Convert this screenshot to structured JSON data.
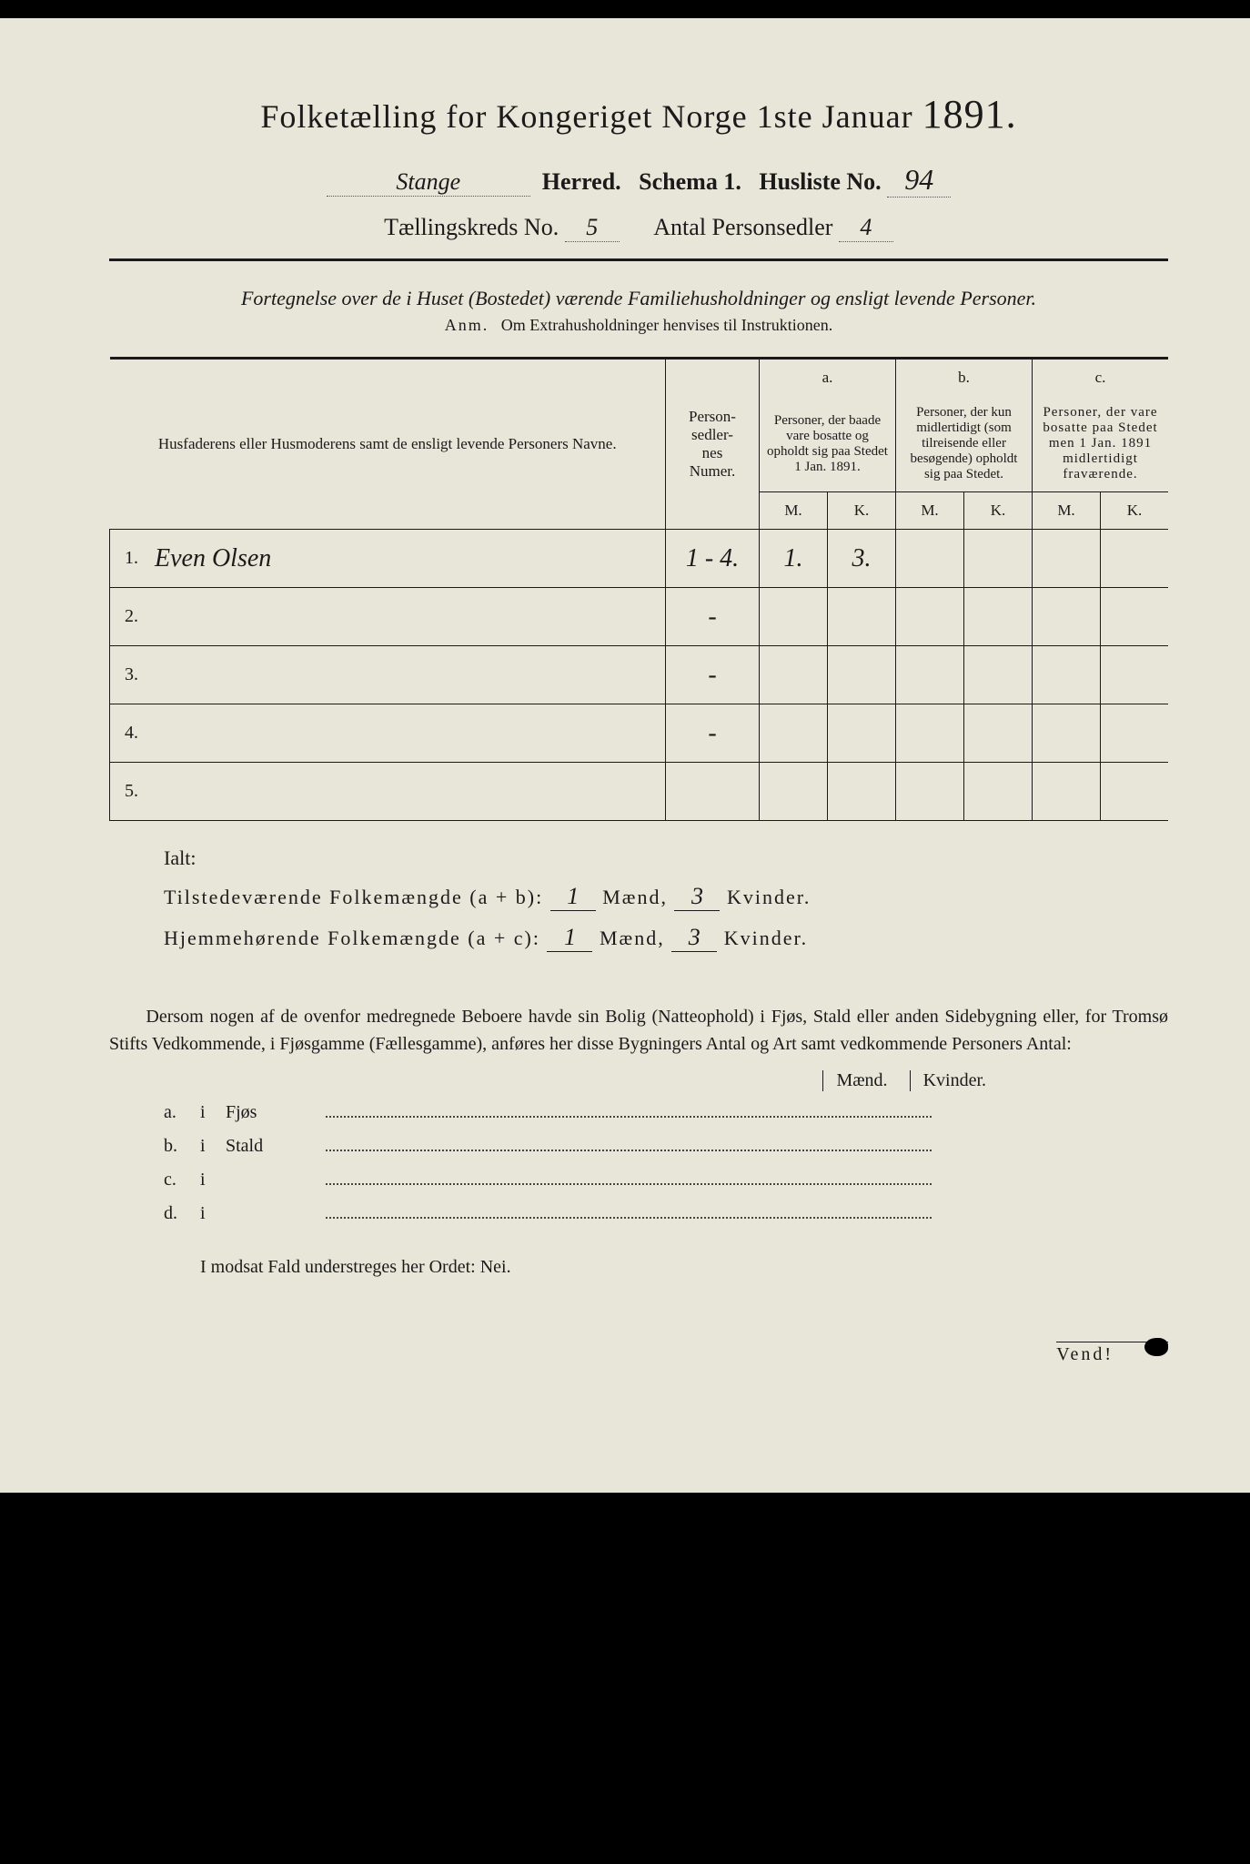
{
  "title": {
    "text_left": "Folketælling for Kongeriget Norge 1ste Januar",
    "year": "1891."
  },
  "header": {
    "herred_name": "Stange",
    "herred_label": "Herred.",
    "schema_label": "Schema 1.",
    "husliste_label": "Husliste No.",
    "husliste_no": "94",
    "kreds_label": "Tællingskreds No.",
    "kreds_no": "5",
    "personsedler_label": "Antal Personsedler",
    "personsedler_no": "4"
  },
  "subtitle": "Fortegnelse over de i Huset (Bostedet) værende Familiehusholdninger og ensligt levende Personer.",
  "anm_label": "Anm.",
  "anm_text": "Om Extrahusholdninger henvises til Instruktionen.",
  "table": {
    "col_name": "Husfaderens eller Husmoderens samt de ensligt levende Personers Navne.",
    "col_numer_l1": "Person-",
    "col_numer_l2": "sedler-",
    "col_numer_l3": "nes",
    "col_numer_l4": "Numer.",
    "a_label": "a.",
    "a_text": "Personer, der baade vare bosatte og opholdt sig paa Stedet 1 Jan. 1891.",
    "b_label": "b.",
    "b_text": "Personer, der kun midlertidigt (som tilreisende eller besøgende) opholdt sig paa Stedet.",
    "c_label": "c.",
    "c_text": "Personer, der vare bosatte paa Stedet men 1 Jan. 1891 midlertidigt fraværende.",
    "M": "M.",
    "K": "K.",
    "rows": [
      {
        "n": "1.",
        "name": "Even Olsen",
        "numer": "1 - 4.",
        "aM": "1.",
        "aK": "3.",
        "bM": "",
        "bK": "",
        "cM": "",
        "cK": ""
      },
      {
        "n": "2.",
        "name": "",
        "numer": "-",
        "aM": "",
        "aK": "",
        "bM": "",
        "bK": "",
        "cM": "",
        "cK": ""
      },
      {
        "n": "3.",
        "name": "",
        "numer": "-",
        "aM": "",
        "aK": "",
        "bM": "",
        "bK": "",
        "cM": "",
        "cK": ""
      },
      {
        "n": "4.",
        "name": "",
        "numer": "-",
        "aM": "",
        "aK": "",
        "bM": "",
        "bK": "",
        "cM": "",
        "cK": ""
      },
      {
        "n": "5.",
        "name": "",
        "numer": "",
        "aM": "",
        "aK": "",
        "bM": "",
        "bK": "",
        "cM": "",
        "cK": ""
      }
    ]
  },
  "ialt": "Ialt:",
  "totals": {
    "line1_left": "Tilstedeværende Folkemængde (a + b):",
    "line1_m": "1",
    "line1_mid": "Mænd,",
    "line1_k": "3",
    "line1_right": "Kvinder.",
    "line2_left": "Hjemmehørende Folkemængde (a + c):",
    "line2_m": "1",
    "line2_k": "3"
  },
  "paragraph": "Dersom nogen af de ovenfor medregnede Beboere havde sin Bolig (Natteophold) i Fjøs, Stald eller anden Sidebygning eller, for Tromsø Stifts Vedkommende, i Fjøsgamme (Fællesgamme), anføres her disse Bygningers Antal og Art samt vedkommende Personers Antal:",
  "mk_labels": {
    "m": "Mænd.",
    "k": "Kvinder."
  },
  "sublist": {
    "a": "a.",
    "b": "b.",
    "c": "c.",
    "d": "d.",
    "i": "i",
    "fjos": "Fjøs",
    "stald": "Stald"
  },
  "modsat": "I modsat Fald understreges her Ordet: Nei.",
  "vend": "Vend!"
}
